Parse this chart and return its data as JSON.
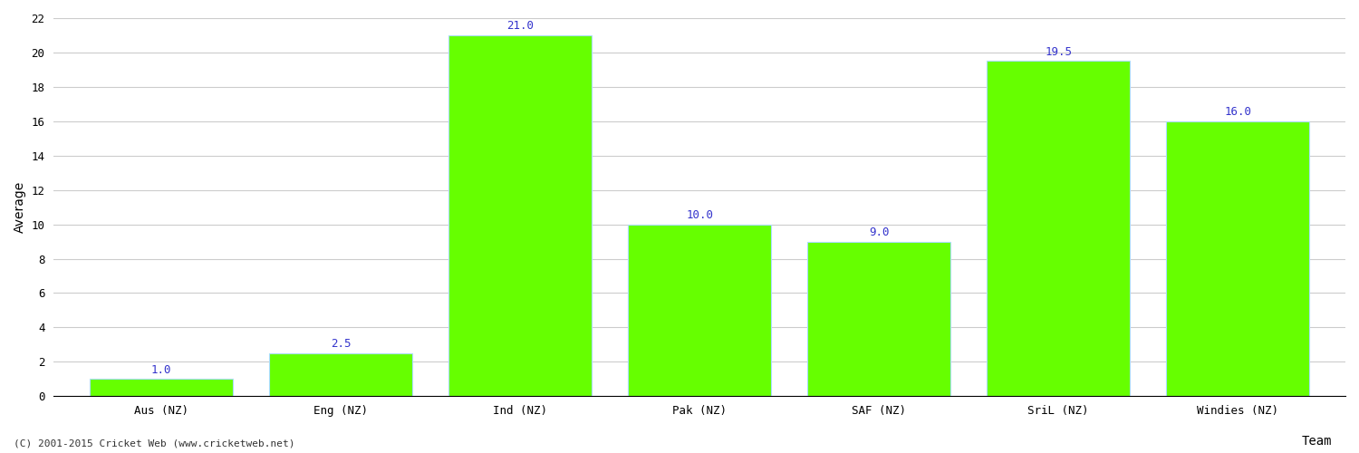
{
  "categories": [
    "Aus (NZ)",
    "Eng (NZ)",
    "Ind (NZ)",
    "Pak (NZ)",
    "SAF (NZ)",
    "SriL (NZ)",
    "Windies (NZ)"
  ],
  "values": [
    1.0,
    2.5,
    21.0,
    10.0,
    9.0,
    19.5,
    16.0
  ],
  "bar_color": "#66ff00",
  "bar_edge_color": "#aaddff",
  "value_label_color": "#3333cc",
  "ylabel": "Average",
  "xlabel": "Team",
  "ylim": [
    0,
    22
  ],
  "yticks": [
    0,
    2,
    4,
    6,
    8,
    10,
    12,
    14,
    16,
    18,
    20,
    22
  ],
  "grid_color": "#cccccc",
  "background_color": "#ffffff",
  "value_fontsize": 9,
  "axis_label_fontsize": 10,
  "tick_label_fontsize": 9,
  "footer_text": "(C) 2001-2015 Cricket Web (www.cricketweb.net)",
  "footer_fontsize": 8,
  "footer_color": "#333333"
}
